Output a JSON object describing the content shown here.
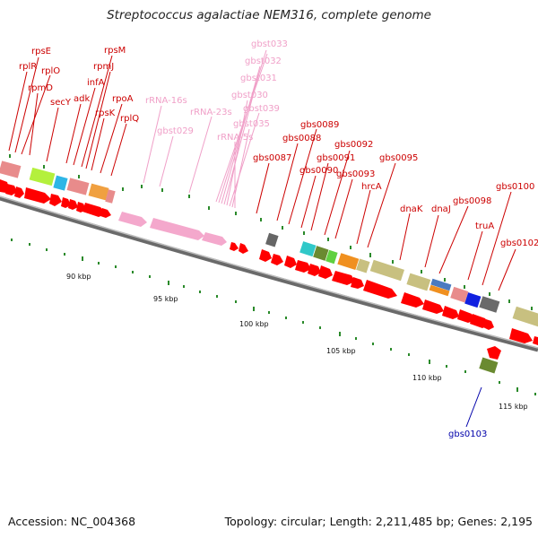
{
  "title": "Streptococcus agalactiae NEM316, complete genome",
  "footer": {
    "accession": "Accession: NC_004368",
    "summary": "Topology: circular; Length: 2,211,485 bp; Genes: 2,195"
  },
  "colors": {
    "gene_label": "#cc0000",
    "rna_label": "#f0a0c8",
    "blue_label": "#0000aa",
    "backbone": "#888888",
    "forward_arrow": "#ff0000",
    "rrna_arrow": "#f4a8cc",
    "tick": "#2a8a2a"
  },
  "genes": [
    {
      "name": "rpsE",
      "label": "rpsE",
      "kind": "gene"
    },
    {
      "name": "rplR",
      "label": "rplR",
      "kind": "gene"
    },
    {
      "name": "rplO",
      "label": "rplO",
      "kind": "gene"
    },
    {
      "name": "rpmD",
      "label": "rpmD",
      "kind": "gene"
    },
    {
      "name": "secY",
      "label": "secY",
      "kind": "gene"
    },
    {
      "name": "adk",
      "label": "adk",
      "kind": "gene"
    },
    {
      "name": "infA",
      "label": "infA",
      "kind": "gene"
    },
    {
      "name": "rpsM",
      "label": "rpsM",
      "kind": "gene"
    },
    {
      "name": "rpmJ",
      "label": "rpmJ",
      "kind": "gene"
    },
    {
      "name": "rpsK",
      "label": "rpsK",
      "kind": "gene"
    },
    {
      "name": "rpoA",
      "label": "rpoA",
      "kind": "gene"
    },
    {
      "name": "rplQ",
      "label": "rplQ",
      "kind": "gene"
    },
    {
      "name": "rRNA-16s",
      "label": "rRNA-16s",
      "kind": "rna"
    },
    {
      "name": "gbst029",
      "label": "gbst029",
      "kind": "rna"
    },
    {
      "name": "rRNA-23s",
      "label": "rRNA-23s",
      "kind": "rna"
    },
    {
      "name": "gbst033",
      "label": "gbst033",
      "kind": "rna"
    },
    {
      "name": "gbst032",
      "label": "gbst032",
      "kind": "rna"
    },
    {
      "name": "gbst031",
      "label": "gbst031",
      "kind": "rna"
    },
    {
      "name": "gbst030",
      "label": "gbst030",
      "kind": "rna"
    },
    {
      "name": "gbst039",
      "label": "gbst039",
      "kind": "rna"
    },
    {
      "name": "gbst035",
      "label": "gbst035",
      "kind": "rna"
    },
    {
      "name": "rRNA-5s",
      "label": "rRNA-5s",
      "kind": "rna"
    },
    {
      "name": "gbs0087",
      "label": "gbs0087",
      "kind": "gene"
    },
    {
      "name": "gbs0088",
      "label": "gbs0088",
      "kind": "gene"
    },
    {
      "name": "gbs0089",
      "label": "gbs0089",
      "kind": "gene"
    },
    {
      "name": "gbs0090",
      "label": "gbs0090",
      "kind": "gene"
    },
    {
      "name": "gbs0091",
      "label": "gbs0091",
      "kind": "gene"
    },
    {
      "name": "gbs0092",
      "label": "gbs0092",
      "kind": "gene"
    },
    {
      "name": "gbs0093",
      "label": "gbs0093",
      "kind": "gene"
    },
    {
      "name": "hrcA",
      "label": "hrcA",
      "kind": "gene"
    },
    {
      "name": "gbs0095",
      "label": "gbs0095",
      "kind": "gene"
    },
    {
      "name": "dnaK",
      "label": "dnaK",
      "kind": "gene"
    },
    {
      "name": "dnaJ",
      "label": "dnaJ",
      "kind": "gene"
    },
    {
      "name": "gbs0098",
      "label": "gbs0098",
      "kind": "gene"
    },
    {
      "name": "truA",
      "label": "truA",
      "kind": "gene"
    },
    {
      "name": "gbs0100",
      "label": "gbs0100",
      "kind": "gene"
    },
    {
      "name": "gbs0102",
      "label": "gbs0102",
      "kind": "gene"
    },
    {
      "name": "gbs0103",
      "label": "gbs0103",
      "kind": "blue"
    }
  ],
  "scale": [
    {
      "label": "90 kbp"
    },
    {
      "label": "95 kbp"
    },
    {
      "label": "100 kbp"
    },
    {
      "label": "105 kbp"
    },
    {
      "label": "110 kbp"
    },
    {
      "label": "115 kbp"
    }
  ]
}
